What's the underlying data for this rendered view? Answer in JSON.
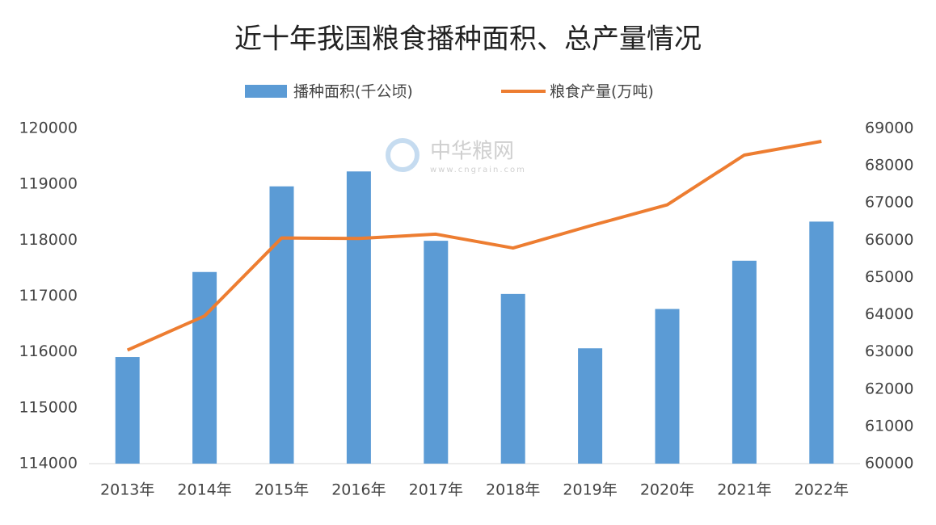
{
  "chart_data": {
    "type": "bar-line",
    "title": "近十年我国粮食播种面积、总产量情况",
    "watermark": "中华粮网",
    "watermark_url": "www.cngrain.com",
    "categories": [
      "2013年",
      "2014年",
      "2015年",
      "2016年",
      "2017年",
      "2018年",
      "2019年",
      "2020年",
      "2021年",
      "2022年"
    ],
    "series": [
      {
        "name": "播种面积(千公顷)",
        "type": "bar",
        "color": "#5b9bd5",
        "values": [
          115908,
          117430,
          118963,
          119230,
          117989,
          117038,
          116064,
          116768,
          117632,
          118332
        ]
      },
      {
        "name": "粮食产量(万吨)",
        "type": "line",
        "axis": "y2",
        "color": "#ed7d31",
        "values": [
          63048,
          63965,
          66060,
          66044,
          66161,
          65789,
          66384,
          66949,
          68285,
          68653
        ]
      }
    ],
    "ylim": [
      114000,
      120000
    ],
    "yticks": [
      114000,
      115000,
      116000,
      117000,
      118000,
      119000,
      120000
    ],
    "y2lim": [
      60000,
      69000
    ],
    "y2ticks": [
      60000,
      61000,
      62000,
      63000,
      64000,
      65000,
      66000,
      67000,
      68000,
      69000
    ],
    "grid": false,
    "legend": "top"
  }
}
